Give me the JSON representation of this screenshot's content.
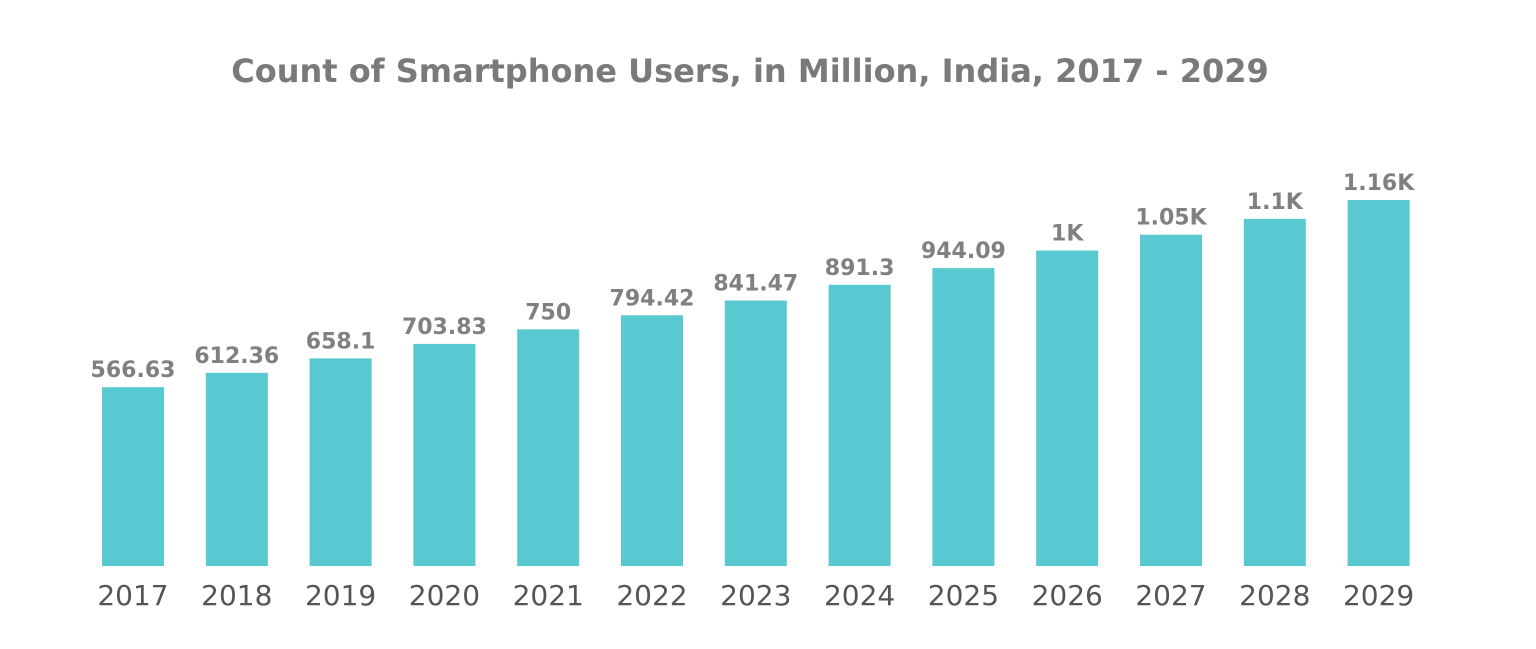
{
  "chart_data": {
    "type": "bar",
    "title": "Count of Smartphone Users, in Million, India, 2017 - 2029",
    "xlabel": "",
    "ylabel": "",
    "categories": [
      "2017",
      "2018",
      "2019",
      "2020",
      "2021",
      "2022",
      "2023",
      "2024",
      "2025",
      "2026",
      "2027",
      "2028",
      "2029"
    ],
    "values": [
      566.63,
      612.36,
      658.1,
      703.83,
      750,
      794.42,
      841.47,
      891.3,
      944.09,
      1000,
      1050,
      1100,
      1160
    ],
    "data_labels": [
      "566.63",
      "612.36",
      "658.1",
      "703.83",
      "750",
      "794.42",
      "841.47",
      "891.3",
      "944.09",
      "1K",
      "1.05K",
      "1.1K",
      "1.16K"
    ],
    "ylim": [
      0,
      1160
    ],
    "grid": false,
    "legend": "none",
    "bar_color": "#58C9D1"
  }
}
